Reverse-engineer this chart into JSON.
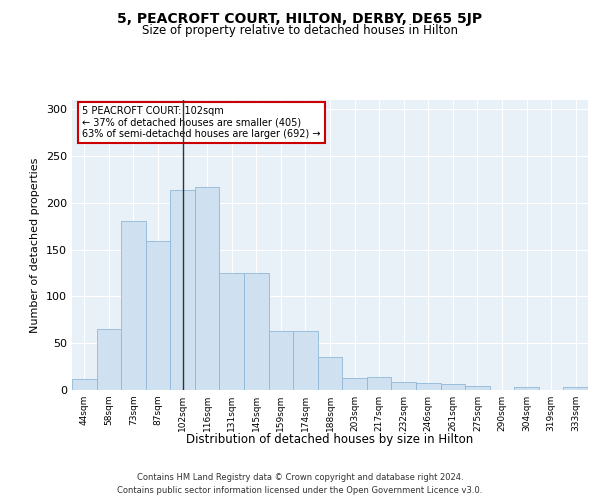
{
  "title": "5, PEACROFT COURT, HILTON, DERBY, DE65 5JP",
  "subtitle": "Size of property relative to detached houses in Hilton",
  "xlabel": "Distribution of detached houses by size in Hilton",
  "ylabel": "Number of detached properties",
  "bar_color": "#cfe0f0",
  "bar_edge_color": "#90b8d8",
  "background_color": "#e8f0f8",
  "categories": [
    "44sqm",
    "58sqm",
    "73sqm",
    "87sqm",
    "102sqm",
    "116sqm",
    "131sqm",
    "145sqm",
    "159sqm",
    "174sqm",
    "188sqm",
    "203sqm",
    "217sqm",
    "232sqm",
    "246sqm",
    "261sqm",
    "275sqm",
    "290sqm",
    "304sqm",
    "319sqm",
    "333sqm"
  ],
  "values": [
    12,
    65,
    181,
    159,
    214,
    217,
    125,
    125,
    63,
    63,
    35,
    13,
    14,
    9,
    8,
    6,
    4,
    0,
    3,
    0,
    3
  ],
  "property_label": "5 PEACROFT COURT: 102sqm",
  "annotation_line1": "← 37% of detached houses are smaller (405)",
  "annotation_line2": "63% of semi-detached houses are larger (692) →",
  "annotation_box_color": "#ffffff",
  "annotation_box_edge_color": "#cc0000",
  "vline_color": "#333333",
  "ylim": [
    0,
    310
  ],
  "yticks": [
    0,
    50,
    100,
    150,
    200,
    250,
    300
  ],
  "footer1": "Contains HM Land Registry data © Crown copyright and database right 2024.",
  "footer2": "Contains public sector information licensed under the Open Government Licence v3.0.",
  "property_bin_index": 4
}
